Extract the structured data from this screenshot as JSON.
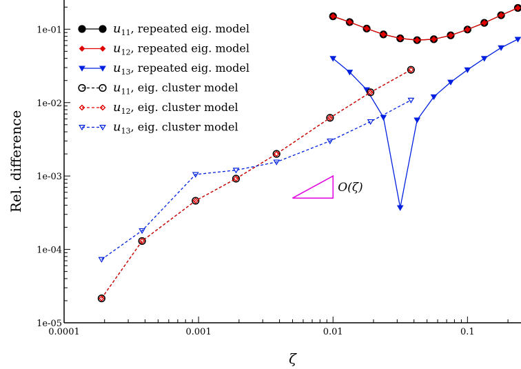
{
  "chart_data": {
    "type": "line",
    "xlabel": "ζ",
    "ylabel": "Rel. difference",
    "x_scale": "log",
    "y_scale": "log",
    "xlim": [
      0.0001,
      0.25
    ],
    "ylim": [
      1e-05,
      0.25
    ],
    "x_ticks": [
      {
        "value": 0.0001,
        "label": "0.0001"
      },
      {
        "value": 0.001,
        "label": "0.001"
      },
      {
        "value": 0.01,
        "label": "0.01"
      },
      {
        "value": 0.1,
        "label": "0.1"
      }
    ],
    "y_ticks": [
      {
        "value": 1e-05,
        "label": "1e-05"
      },
      {
        "value": 0.0001,
        "label": "1e-04"
      },
      {
        "value": 0.001,
        "label": "1e-03"
      },
      {
        "value": 0.01,
        "label": "1e-02"
      },
      {
        "value": 0.1,
        "label": "1e-01"
      }
    ],
    "legend_position": "top-left",
    "grid": false,
    "series": [
      {
        "name": "u11, repeated eig. model",
        "name_base": "u",
        "name_sub": "11",
        "name_rest": ", repeated eig. model",
        "color": "#000000",
        "dash": "solid",
        "marker": "circle-filled",
        "x": [
          0.01,
          0.0133,
          0.0178,
          0.0237,
          0.0316,
          0.0422,
          0.0562,
          0.075,
          0.1,
          0.1334,
          0.1778,
          0.237
        ],
        "y": [
          0.15,
          0.125,
          0.102,
          0.085,
          0.075,
          0.071,
          0.073,
          0.0825,
          0.099,
          0.122,
          0.155,
          0.195
        ]
      },
      {
        "name": "u12, repeated eig. model",
        "name_base": "u",
        "name_sub": "12",
        "name_rest": ", repeated eig. model",
        "color": "#e00000",
        "dash": "solid",
        "marker": "diamond-filled",
        "x": [
          0.01,
          0.0133,
          0.0178,
          0.0237,
          0.0316,
          0.0422,
          0.0562,
          0.075,
          0.1,
          0.1334,
          0.1778,
          0.237
        ],
        "y": [
          0.15,
          0.125,
          0.102,
          0.085,
          0.075,
          0.071,
          0.073,
          0.0825,
          0.099,
          0.122,
          0.155,
          0.195
        ]
      },
      {
        "name": "u13, repeated eig. model",
        "name_base": "u",
        "name_sub": "13",
        "name_rest": ", repeated eig. model",
        "color": "#0020e0",
        "dash": "solid",
        "marker": "triangle-down-filled",
        "x": [
          0.01,
          0.0133,
          0.0178,
          0.0237,
          0.0316,
          0.0422,
          0.0562,
          0.075,
          0.1,
          0.1334,
          0.1778,
          0.237
        ],
        "y": [
          0.04,
          0.026,
          0.015,
          0.0063,
          0.00037,
          0.0058,
          0.012,
          0.019,
          0.028,
          0.04,
          0.056,
          0.073
        ]
      },
      {
        "name": "u11, eig. cluster model",
        "name_base": "u",
        "name_sub": "11",
        "name_rest": ", eig. cluster model",
        "color": "#000000",
        "dash": "dashed",
        "marker": "circle-open",
        "x": [
          0.00019,
          0.00038,
          0.00095,
          0.0019,
          0.0038,
          0.0095,
          0.019,
          0.038
        ],
        "y": [
          2.15e-05,
          0.00013,
          0.00046,
          0.00092,
          0.002,
          0.0062,
          0.0138,
          0.028
        ]
      },
      {
        "name": "u12, eig. cluster model",
        "name_base": "u",
        "name_sub": "12",
        "name_rest": ", eig. cluster model",
        "color": "#e00000",
        "dash": "dashed",
        "marker": "diamond-open",
        "x": [
          0.00019,
          0.00038,
          0.00095,
          0.0019,
          0.0038,
          0.0095,
          0.019,
          0.038
        ],
        "y": [
          2.15e-05,
          0.00013,
          0.00046,
          0.00092,
          0.002,
          0.0062,
          0.0138,
          0.028
        ]
      },
      {
        "name": "u13, eig. cluster model",
        "name_base": "u",
        "name_sub": "13",
        "name_rest": ", eig. cluster model",
        "color": "#0020e0",
        "dash": "dashed",
        "marker": "triangle-down-open",
        "x": [
          0.00019,
          0.00038,
          0.00095,
          0.0019,
          0.0038,
          0.0095,
          0.019,
          0.038
        ],
        "y": [
          7.3e-05,
          0.00018,
          0.00105,
          0.0012,
          0.00155,
          0.003,
          0.0055,
          0.0108
        ]
      }
    ],
    "annotation": {
      "label_prefix": "O(",
      "label_symbol": "ζ",
      "label_suffix": ")",
      "color": "#e000e0",
      "x": [
        0.005,
        0.01
      ],
      "y": [
        0.0005,
        0.001
      ]
    }
  }
}
